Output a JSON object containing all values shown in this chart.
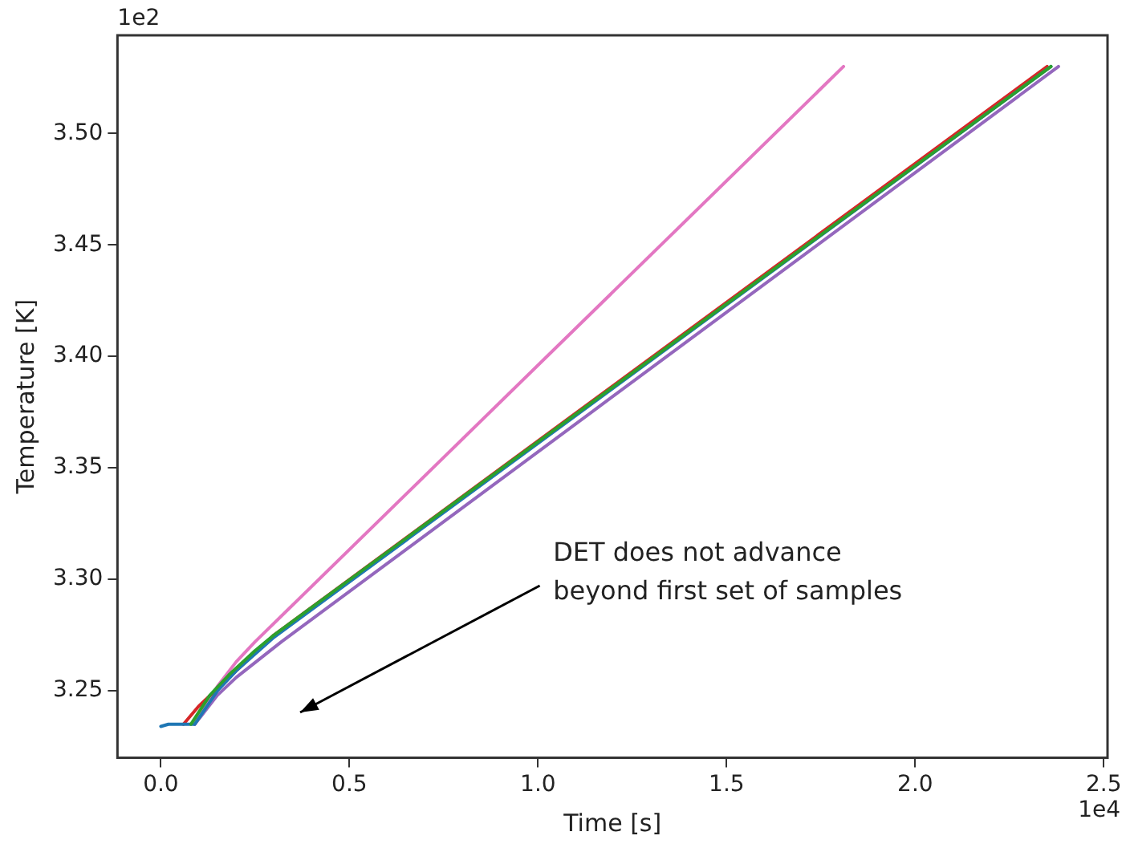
{
  "chart_data": {
    "type": "line",
    "xlabel": "Time [s]",
    "ylabel": "Temperature [K]",
    "xlim": [
      -0.115,
      2.51
    ],
    "ylim": [
      3.22,
      3.544
    ],
    "xticks": [
      {
        "value": 0,
        "label": "0.0"
      },
      0.5,
      {
        "value": 1,
        "label": "1.0"
      },
      1.5,
      {
        "value": 2,
        "label": "2.0"
      },
      2.5
    ],
    "yticks": [
      3.25,
      {
        "value": 3.3,
        "label": "3.30"
      },
      3.35,
      {
        "value": 3.4,
        "label": "3.40"
      },
      3.45,
      {
        "value": 3.5,
        "label": "3.50"
      }
    ],
    "grid": false,
    "legend": false,
    "marker": "none",
    "line_style": "solid",
    "annotations": [
      "DET does not advance\nbeyond first set of samples",
      "1e2",
      "1e4"
    ],
    "series": [
      {
        "color": "#2ca02c",
        "x": [
          0.08,
          0.13,
          0.18,
          0.25,
          0.3,
          2.36
        ],
        "values": [
          3.235,
          3.248,
          3.257,
          3.268,
          3.275,
          3.53
        ]
      },
      {
        "color": "#1f77b4",
        "x": [
          0,
          0.02,
          0.09,
          0.15,
          0.2,
          0.3,
          2.36
        ],
        "values": [
          3.234,
          3.235,
          3.235,
          3.25,
          3.259,
          3.274,
          3.53
        ]
      },
      {
        "color": "#d62728",
        "x": [
          0.06,
          0.1,
          0.15,
          0.2,
          0.3,
          2.35
        ],
        "values": [
          3.235,
          3.243,
          3.251,
          3.259,
          3.275,
          3.53
        ]
      },
      {
        "color": "#9467bd",
        "x": [
          0.09,
          0.15,
          0.2,
          0.26,
          0.32,
          2.38
        ],
        "values": [
          3.235,
          3.248,
          3.256,
          3.264,
          3.272,
          3.53
        ]
      },
      {
        "color": "#e377c2",
        "x": [
          0.09,
          0.15,
          0.2,
          0.25,
          1.81
        ],
        "values": [
          3.235,
          3.252,
          3.263,
          3.272,
          3.53
        ]
      }
    ]
  }
}
